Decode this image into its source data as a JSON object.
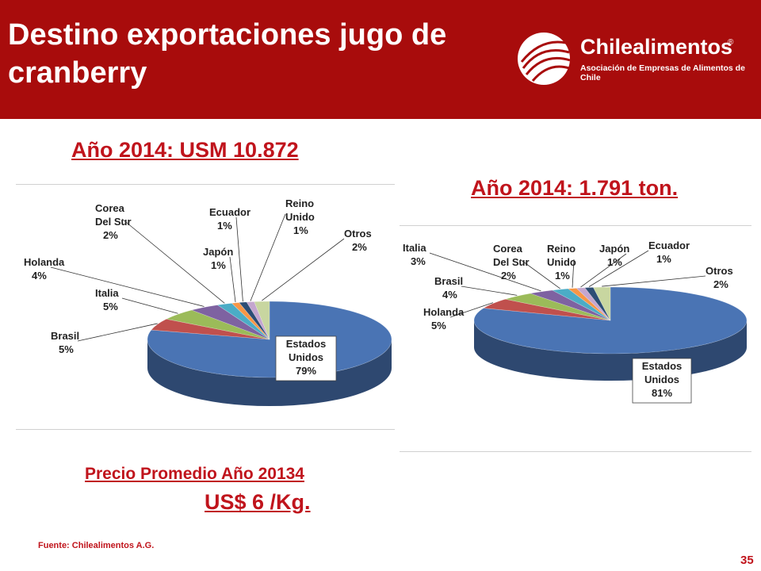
{
  "slide": {
    "title": "Destino exportaciones jugo de cranberry",
    "logo": {
      "name": "Chilealimentos",
      "registered": "®",
      "subtitle": "Asociación de Empresas de Alimentos de Chile",
      "icon": "chilealimentos-logo-icon"
    },
    "value_heading": "Año 2014: USM 10.872",
    "volume_heading": "Año 2014: 1.791 ton.",
    "price_label": "Precio Promedio Año 20134",
    "price_value": "US$ 6 /Kg.",
    "source": "Fuente: Chilealimentos A.G.",
    "page_number": "35"
  },
  "chart_data": [
    {
      "type": "pie",
      "style": "3d",
      "title": "",
      "categories": [
        "Estados Unidos",
        "Brasil",
        "Italia",
        "Holanda",
        "Corea Del Sur",
        "Japón",
        "Ecuador",
        "Reino Unido",
        "Otros"
      ],
      "values": [
        79,
        5,
        5,
        4,
        2,
        1,
        1,
        1,
        2
      ],
      "labels": [
        "Estados\nUnidos\n79%",
        "Brasil\n5%",
        "Italia\n5%",
        "Holanda\n4%",
        "Corea\nDel Sur\n2%",
        "Japón\n1%",
        "Ecuador\n1%",
        "Reino\nUnido\n1%",
        "Otros\n2%"
      ],
      "colors": [
        "#4a74b4",
        "#c0504d",
        "#9bbb59",
        "#7e62a1",
        "#4bacc6",
        "#f79646",
        "#2c4d75",
        "#c4a6cf",
        "#c8d6a0"
      ]
    },
    {
      "type": "pie",
      "style": "3d",
      "title": "",
      "categories": [
        "Estados Unidos",
        "Holanda",
        "Brasil",
        "Italia",
        "Corea Del Sur",
        "Reino Unido",
        "Japón",
        "Ecuador",
        "Otros"
      ],
      "values": [
        81,
        5,
        4,
        3,
        2,
        1,
        1,
        1,
        2
      ],
      "labels": [
        "Estados\nUnidos\n81%",
        "Holanda\n5%",
        "Brasil\n4%",
        "Italia\n3%",
        "Corea\nDel Sur\n2%",
        "Reino\nUnido\n1%",
        "Japón\n1%",
        "Ecuador\n1%",
        "Otros\n2%"
      ],
      "colors": [
        "#4a74b4",
        "#c0504d",
        "#9bbb59",
        "#7e62a1",
        "#4bacc6",
        "#f79646",
        "#c4a6cf",
        "#2c4d75",
        "#c8d6a0"
      ]
    }
  ]
}
